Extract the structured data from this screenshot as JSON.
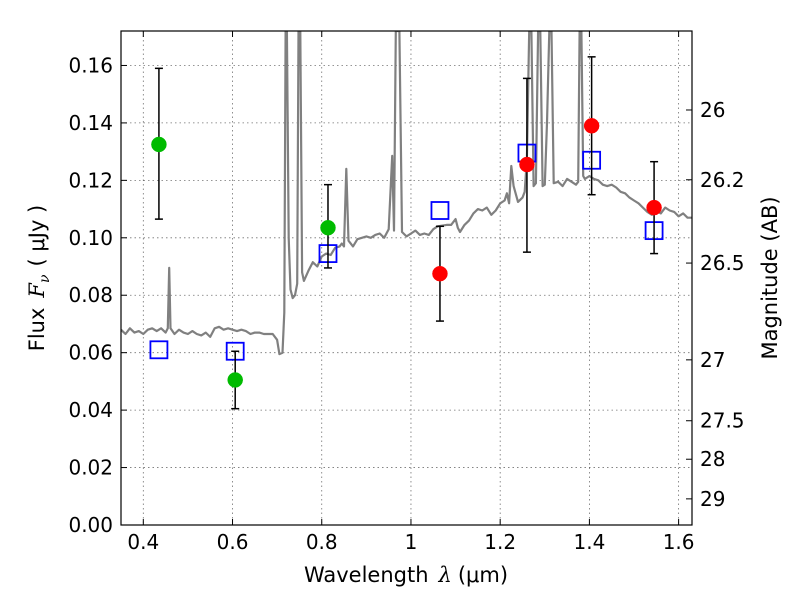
{
  "chart_data": {
    "type": "scatter",
    "xlabel_text": "Wavelength",
    "xlabel_symbol": "λ",
    "xlabel_unit": "(μm)",
    "ylabel_text": "Flux",
    "ylabel_symbol": "F",
    "ylabel_subscript": "ν",
    "ylabel_unit": "( μJy )",
    "y2label": "Magnitude (AB)",
    "xlim": [
      0.35,
      1.63
    ],
    "ylim": [
      0.0,
      0.172
    ],
    "grid": true,
    "x_ticks": [
      0.4,
      0.6,
      0.8,
      1.0,
      1.2,
      1.4,
      1.6
    ],
    "x_tick_labels": [
      "0.4",
      "0.6",
      "0.8",
      "1",
      "1.2",
      "1.4",
      "1.6"
    ],
    "y_ticks": [
      0.0,
      0.02,
      0.04,
      0.06,
      0.08,
      0.1,
      0.12,
      0.14,
      0.16
    ],
    "y_tick_labels": [
      "0.00",
      "0.02",
      "0.04",
      "0.06",
      "0.08",
      "0.10",
      "0.12",
      "0.14",
      "0.16"
    ],
    "y2_ticks": [
      {
        "label": "26",
        "flux": 0.1445
      },
      {
        "label": "26.2",
        "flux": 0.1202
      },
      {
        "label": "26.5",
        "flux": 0.0912
      },
      {
        "label": "27",
        "flux": 0.0575
      },
      {
        "label": "27.5",
        "flux": 0.0363
      },
      {
        "label": "28",
        "flux": 0.0229
      },
      {
        "label": "29",
        "flux": 0.0091
      }
    ],
    "series": [
      {
        "marker": "circle",
        "color": "#00bb00",
        "points": [
          {
            "x": 0.435,
            "y": 0.1325,
            "err_lo": 0.1065,
            "err_hi": 0.159
          },
          {
            "x": 0.606,
            "y": 0.0505,
            "err_lo": 0.0405,
            "err_hi": 0.0605
          },
          {
            "x": 0.814,
            "y": 0.1035,
            "err_lo": 0.0895,
            "err_hi": 0.1185
          }
        ]
      },
      {
        "marker": "circle",
        "color": "#ff0000",
        "points": [
          {
            "x": 1.065,
            "y": 0.0875,
            "err_lo": 0.071,
            "err_hi": 0.104
          },
          {
            "x": 1.26,
            "y": 0.1255,
            "err_lo": 0.095,
            "err_hi": 0.1555
          },
          {
            "x": 1.405,
            "y": 0.139,
            "err_lo": 0.115,
            "err_hi": 0.163
          },
          {
            "x": 1.545,
            "y": 0.1105,
            "err_lo": 0.0945,
            "err_hi": 0.1265
          }
        ]
      },
      {
        "marker": "open-square",
        "color": "#0000ff",
        "points": [
          {
            "x": 0.435,
            "y": 0.061
          },
          {
            "x": 0.606,
            "y": 0.0605
          },
          {
            "x": 0.814,
            "y": 0.0945
          },
          {
            "x": 1.065,
            "y": 0.1095
          },
          {
            "x": 1.26,
            "y": 0.1295
          },
          {
            "x": 1.405,
            "y": 0.127
          },
          {
            "x": 1.545,
            "y": 0.1025
          }
        ]
      }
    ],
    "spectrum": {
      "type": "line",
      "color": "#808080",
      "points": [
        [
          0.35,
          0.068
        ],
        [
          0.36,
          0.0665
        ],
        [
          0.37,
          0.0685
        ],
        [
          0.38,
          0.067
        ],
        [
          0.39,
          0.0675
        ],
        [
          0.4,
          0.0665
        ],
        [
          0.41,
          0.068
        ],
        [
          0.42,
          0.0685
        ],
        [
          0.43,
          0.0675
        ],
        [
          0.44,
          0.0685
        ],
        [
          0.45,
          0.067
        ],
        [
          0.455,
          0.0685
        ],
        [
          0.458,
          0.0895
        ],
        [
          0.461,
          0.0685
        ],
        [
          0.47,
          0.0665
        ],
        [
          0.48,
          0.068
        ],
        [
          0.49,
          0.067
        ],
        [
          0.5,
          0.0665
        ],
        [
          0.51,
          0.0675
        ],
        [
          0.52,
          0.0665
        ],
        [
          0.53,
          0.066
        ],
        [
          0.54,
          0.067
        ],
        [
          0.55,
          0.0655
        ],
        [
          0.56,
          0.0685
        ],
        [
          0.57,
          0.069
        ],
        [
          0.58,
          0.068
        ],
        [
          0.59,
          0.0685
        ],
        [
          0.6,
          0.068
        ],
        [
          0.61,
          0.0675
        ],
        [
          0.62,
          0.068
        ],
        [
          0.63,
          0.0675
        ],
        [
          0.64,
          0.0665
        ],
        [
          0.65,
          0.067
        ],
        [
          0.66,
          0.067
        ],
        [
          0.67,
          0.0665
        ],
        [
          0.68,
          0.0665
        ],
        [
          0.69,
          0.0665
        ],
        [
          0.7,
          0.0645
        ],
        [
          0.705,
          0.0595
        ],
        [
          0.712,
          0.06
        ],
        [
          0.716,
          0.074
        ],
        [
          0.719,
          0.172
        ],
        [
          0.722,
          0.172
        ],
        [
          0.726,
          0.1
        ],
        [
          0.73,
          0.082
        ],
        [
          0.735,
          0.079
        ],
        [
          0.74,
          0.08
        ],
        [
          0.745,
          0.084
        ],
        [
          0.748,
          0.172
        ],
        [
          0.752,
          0.172
        ],
        [
          0.756,
          0.088
        ],
        [
          0.76,
          0.085
        ],
        [
          0.77,
          0.0885
        ],
        [
          0.78,
          0.0915
        ],
        [
          0.79,
          0.09
        ],
        [
          0.8,
          0.0935
        ],
        [
          0.81,
          0.0945
        ],
        [
          0.82,
          0.094
        ],
        [
          0.83,
          0.0965
        ],
        [
          0.84,
          0.097
        ],
        [
          0.845,
          0.098
        ],
        [
          0.85,
          0.097
        ],
        [
          0.855,
          0.124
        ],
        [
          0.86,
          0.099
        ],
        [
          0.87,
          0.097
        ],
        [
          0.88,
          0.0995
        ],
        [
          0.89,
          0.1
        ],
        [
          0.9,
          0.1005
        ],
        [
          0.91,
          0.1
        ],
        [
          0.92,
          0.101
        ],
        [
          0.93,
          0.1015
        ],
        [
          0.94,
          0.1
        ],
        [
          0.95,
          0.103
        ],
        [
          0.958,
          0.1285
        ],
        [
          0.962,
          0.1025
        ],
        [
          0.966,
          0.172
        ],
        [
          0.974,
          0.172
        ],
        [
          0.98,
          0.102
        ],
        [
          0.99,
          0.1005
        ],
        [
          1.0,
          0.1015
        ],
        [
          1.01,
          0.1025
        ],
        [
          1.02,
          0.101
        ],
        [
          1.03,
          0.1015
        ],
        [
          1.04,
          0.101
        ],
        [
          1.05,
          0.103
        ],
        [
          1.06,
          0.104
        ],
        [
          1.08,
          0.1045
        ],
        [
          1.09,
          0.1045
        ],
        [
          1.1,
          0.1065
        ],
        [
          1.105,
          0.1035
        ],
        [
          1.11,
          0.102
        ],
        [
          1.12,
          0.1045
        ],
        [
          1.13,
          0.106
        ],
        [
          1.14,
          0.1085
        ],
        [
          1.15,
          0.11
        ],
        [
          1.16,
          0.1095
        ],
        [
          1.17,
          0.1105
        ],
        [
          1.18,
          0.108
        ],
        [
          1.19,
          0.1095
        ],
        [
          1.2,
          0.112
        ],
        [
          1.21,
          0.113
        ],
        [
          1.215,
          0.1155
        ],
        [
          1.22,
          0.112
        ],
        [
          1.225,
          0.125
        ],
        [
          1.23,
          0.118
        ],
        [
          1.24,
          0.1125
        ],
        [
          1.25,
          0.114
        ],
        [
          1.255,
          0.116
        ],
        [
          1.26,
          0.1275
        ],
        [
          1.265,
          0.172
        ],
        [
          1.27,
          0.172
        ],
        [
          1.275,
          0.118
        ],
        [
          1.28,
          0.119
        ],
        [
          1.285,
          0.172
        ],
        [
          1.29,
          0.172
        ],
        [
          1.295,
          0.118
        ],
        [
          1.3,
          0.1185
        ],
        [
          1.305,
          0.14
        ],
        [
          1.31,
          0.172
        ],
        [
          1.315,
          0.172
        ],
        [
          1.32,
          0.119
        ],
        [
          1.33,
          0.1195
        ],
        [
          1.34,
          0.118
        ],
        [
          1.35,
          0.1205
        ],
        [
          1.36,
          0.1195
        ],
        [
          1.37,
          0.1185
        ],
        [
          1.375,
          0.1195
        ],
        [
          1.378,
          0.172
        ],
        [
          1.382,
          0.172
        ],
        [
          1.386,
          0.1215
        ],
        [
          1.39,
          0.1205
        ],
        [
          1.4,
          0.1215
        ],
        [
          1.41,
          0.1205
        ],
        [
          1.42,
          0.12
        ],
        [
          1.43,
          0.1185
        ],
        [
          1.44,
          0.118
        ],
        [
          1.45,
          0.1185
        ],
        [
          1.46,
          0.1175
        ],
        [
          1.47,
          0.116
        ],
        [
          1.48,
          0.1155
        ],
        [
          1.49,
          0.114
        ],
        [
          1.5,
          0.113
        ],
        [
          1.51,
          0.112
        ],
        [
          1.52,
          0.1105
        ],
        [
          1.53,
          0.109
        ],
        [
          1.54,
          0.108
        ],
        [
          1.55,
          0.1095
        ],
        [
          1.56,
          0.1085
        ],
        [
          1.57,
          0.1105
        ],
        [
          1.58,
          0.1095
        ],
        [
          1.59,
          0.109
        ],
        [
          1.6,
          0.1075
        ],
        [
          1.61,
          0.1085
        ],
        [
          1.62,
          0.107
        ],
        [
          1.63,
          0.107
        ]
      ]
    }
  }
}
